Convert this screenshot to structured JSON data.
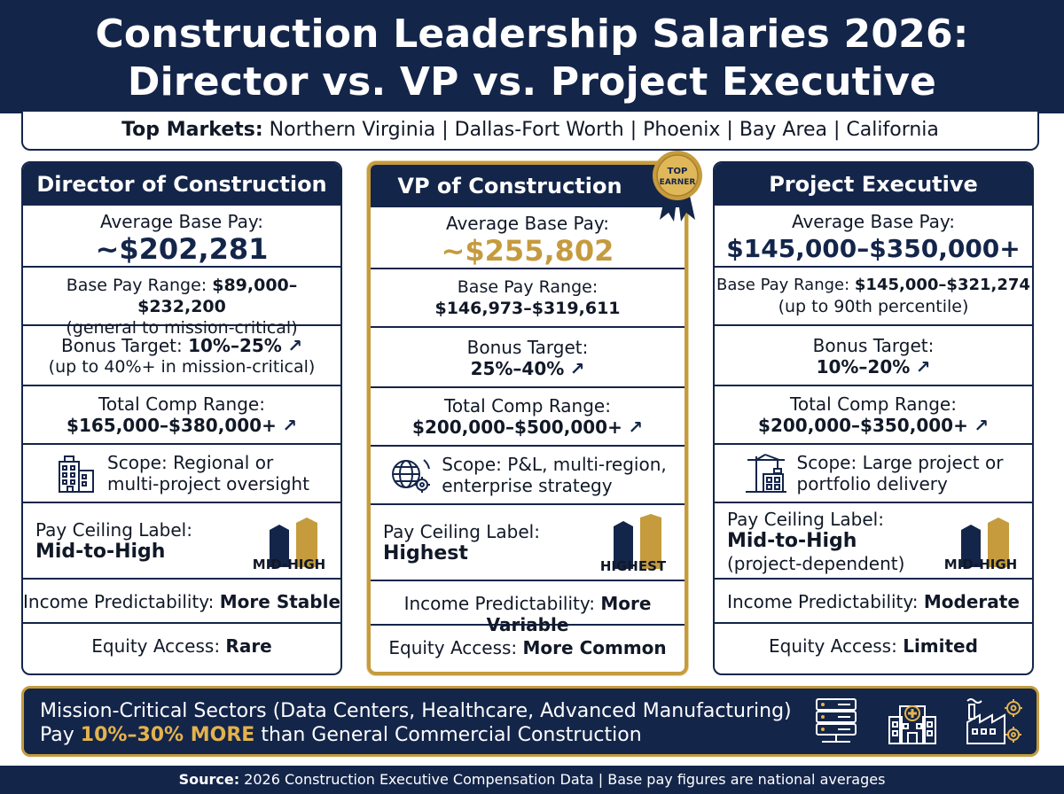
{
  "header": {
    "title_line1": "Construction Leadership Salaries 2026:",
    "title_line2": "Director vs. VP vs. Project Executive"
  },
  "markets": {
    "label": "Top Markets:",
    "list": "Northern Virginia | Dallas-Fort Worth | Phoenix | Bay Area | California"
  },
  "badge": {
    "line1": "TOP",
    "line2": "EARNER"
  },
  "cards": [
    {
      "title": "Director of Construction",
      "avg_label": "Average Base Pay:",
      "avg_value": "~$202,281",
      "range_label": "Base Pay Range:",
      "range_value": "$89,000–$232,200",
      "range_note": "(general to mission-critical)",
      "bonus_label": "Bonus Target:",
      "bonus_value": "10%–25%",
      "bonus_note": "(up to 40%+ in mission-critical)",
      "total_label": "Total Comp Range:",
      "total_value": "$165,000–$380,000+",
      "scope_line1": "Scope: Regional or",
      "scope_line2": "multi-project oversight",
      "scope_icon": "office-building-icon",
      "ceiling_label": "Pay Ceiling Label:",
      "ceiling_value": "Mid-to-High",
      "ceiling_badge": "MID-HIGH",
      "predict_label": "Income Predictability:",
      "predict_value": "More Stable",
      "equity_label": "Equity Access:",
      "equity_value": "Rare"
    },
    {
      "title": "VP of Construction",
      "avg_label": "Average Base Pay:",
      "avg_value": "~$255,802",
      "range_label": "Base Pay Range:",
      "range_value": "$146,973–$319,611",
      "bonus_label": "Bonus Target:",
      "bonus_value": "25%–40%",
      "total_label": "Total Comp Range:",
      "total_value": "$200,000–$500,000+",
      "scope_line1": "Scope: P&L, multi-region,",
      "scope_line2": "enterprise strategy",
      "scope_icon": "globe-gear-icon",
      "ceiling_label": "Pay Ceiling Label:",
      "ceiling_value": "Highest",
      "ceiling_badge": "HIGHEST",
      "predict_label": "Income Predictability:",
      "predict_value": "More Variable",
      "equity_label": "Equity Access:",
      "equity_value": "More Common"
    },
    {
      "title": "Project Executive",
      "avg_label": "Average Base Pay:",
      "avg_value": "$145,000–$350,000+",
      "range_label": "Base Pay Range:",
      "range_value": "$145,000–$321,274",
      "range_note": "(up to 90th percentile)",
      "bonus_label": "Bonus Target:",
      "bonus_value": "10%–20%",
      "total_label": "Total Comp Range:",
      "total_value": "$200,000–$350,000+",
      "scope_line1": "Scope: Large project or",
      "scope_line2": "portfolio delivery",
      "scope_icon": "crane-building-icon",
      "ceiling_label": "Pay Ceiling Label:",
      "ceiling_value": "Mid-to-High",
      "ceiling_sub": "(project-dependent)",
      "ceiling_badge": "MID-HIGH",
      "predict_label": "Income Predictability:",
      "predict_value": "Moderate",
      "equity_label": "Equity Access:",
      "equity_value": "Limited"
    }
  ],
  "banner": {
    "line1": "Mission-Critical Sectors (Data Centers, Healthcare, Advanced Manufacturing)",
    "line2_pre": "Pay ",
    "line2_highlight": "10%–30% MORE",
    "line2_post": " than General Commercial Construction",
    "icons": [
      "server-rack-icon",
      "hospital-icon",
      "factory-gear-icon"
    ]
  },
  "footer": {
    "source_label": "Source:",
    "source_text": " 2026 Construction Executive Compensation Data | Base pay figures are national averages"
  },
  "colors": {
    "navy": "#14254a",
    "gold": "#c59b3e"
  }
}
